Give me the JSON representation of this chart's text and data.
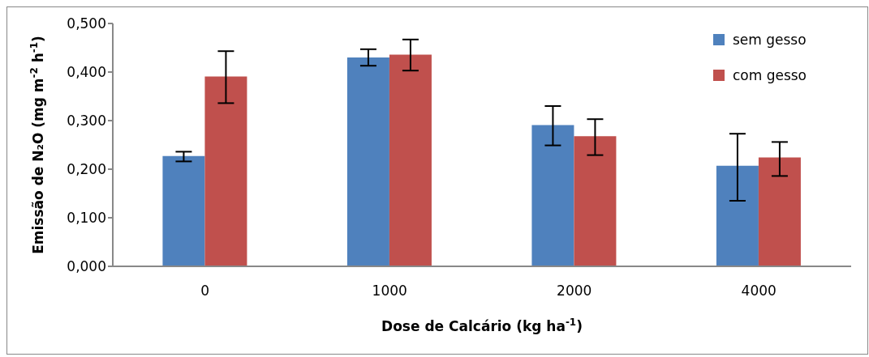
{
  "chart_data": {
    "type": "bar",
    "xlabel": "Dose de Calcário (kg ha$^{-1}$)",
    "ylabel": "Emissão de N₂O (mg m$^{-2}$ h$^{-1}$)",
    "categories": [
      "0",
      "1000",
      "2000",
      "4000"
    ],
    "series": [
      {
        "name": "sem gesso",
        "color": "#4f81bd",
        "values": [
          0.227,
          0.43,
          0.291,
          0.207
        ],
        "errors": [
          [
            0.216,
            0.236
          ],
          [
            0.413,
            0.447
          ],
          [
            0.249,
            0.33
          ],
          [
            0.135,
            0.273
          ]
        ]
      },
      {
        "name": "com gesso",
        "color": "#c0504d",
        "values": [
          0.391,
          0.436,
          0.268,
          0.224
        ],
        "errors": [
          [
            0.336,
            0.443
          ],
          [
            0.403,
            0.467
          ],
          [
            0.229,
            0.303
          ],
          [
            0.186,
            0.256
          ]
        ]
      }
    ],
    "ylim": [
      0,
      0.5
    ],
    "yticks": [
      {
        "value": 0,
        "label": "0,000"
      },
      {
        "value": 0.1,
        "label": "0,100"
      },
      {
        "value": 0.2,
        "label": "0,200"
      },
      {
        "value": 0.3,
        "label": "0,300"
      },
      {
        "value": 0.4,
        "label": "0,400"
      },
      {
        "value": 0.5,
        "label": "0,500"
      }
    ],
    "grid": false,
    "legend": "top right"
  }
}
